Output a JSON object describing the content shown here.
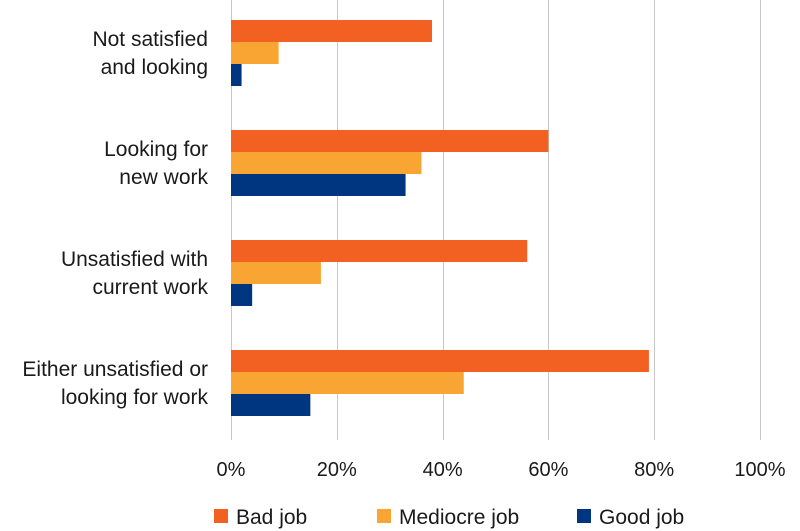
{
  "chart_data": {
    "type": "bar",
    "orientation": "horizontal",
    "categories": [
      [
        "Not satisfied",
        "and looking"
      ],
      [
        "Looking for",
        "new work"
      ],
      [
        "Unsatisfied with",
        "current work"
      ],
      [
        "Either unsatisfied or",
        "looking for work"
      ]
    ],
    "series": [
      {
        "name": "Bad job",
        "color": "#f26122",
        "values": [
          38,
          60,
          56,
          79
        ]
      },
      {
        "name": "Mediocre job",
        "color": "#f9a533",
        "values": [
          9,
          36,
          17,
          44
        ]
      },
      {
        "name": "Good job",
        "color": "#003580",
        "values": [
          2,
          33,
          4,
          15
        ]
      }
    ],
    "xlim": [
      0,
      100
    ],
    "xticks": [
      0,
      20,
      40,
      60,
      80,
      100
    ],
    "xtick_labels": [
      "0%",
      "20%",
      "40%",
      "60%",
      "80%",
      "100%"
    ],
    "grid": true,
    "legend_position": "bottom"
  }
}
